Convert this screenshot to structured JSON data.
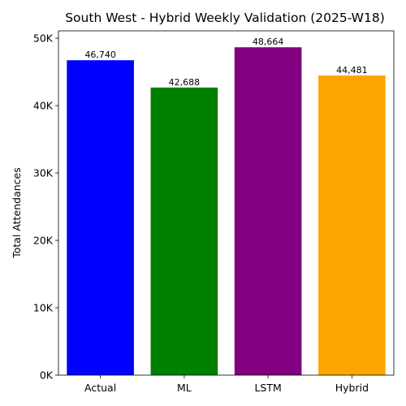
{
  "chart_data": {
    "type": "bar",
    "title": "South West - Hybrid Weekly Validation (2025-W18)",
    "xlabel": "",
    "ylabel": "Total Attendances",
    "categories": [
      "Actual",
      "ML",
      "LSTM",
      "Hybrid"
    ],
    "values": [
      46740,
      42688,
      48664,
      44481
    ],
    "value_labels": [
      "46,740",
      "42,688",
      "48,664",
      "44,481"
    ],
    "colors": [
      "#0000ff",
      "#008000",
      "#800080",
      "#ffa500"
    ],
    "ylim": [
      0,
      51100
    ],
    "yticks": [
      0,
      10000,
      20000,
      30000,
      40000,
      50000
    ],
    "ytick_labels": [
      "0K",
      "10K",
      "20K",
      "30K",
      "40K",
      "50K"
    ],
    "grid": false,
    "legend": "none"
  }
}
